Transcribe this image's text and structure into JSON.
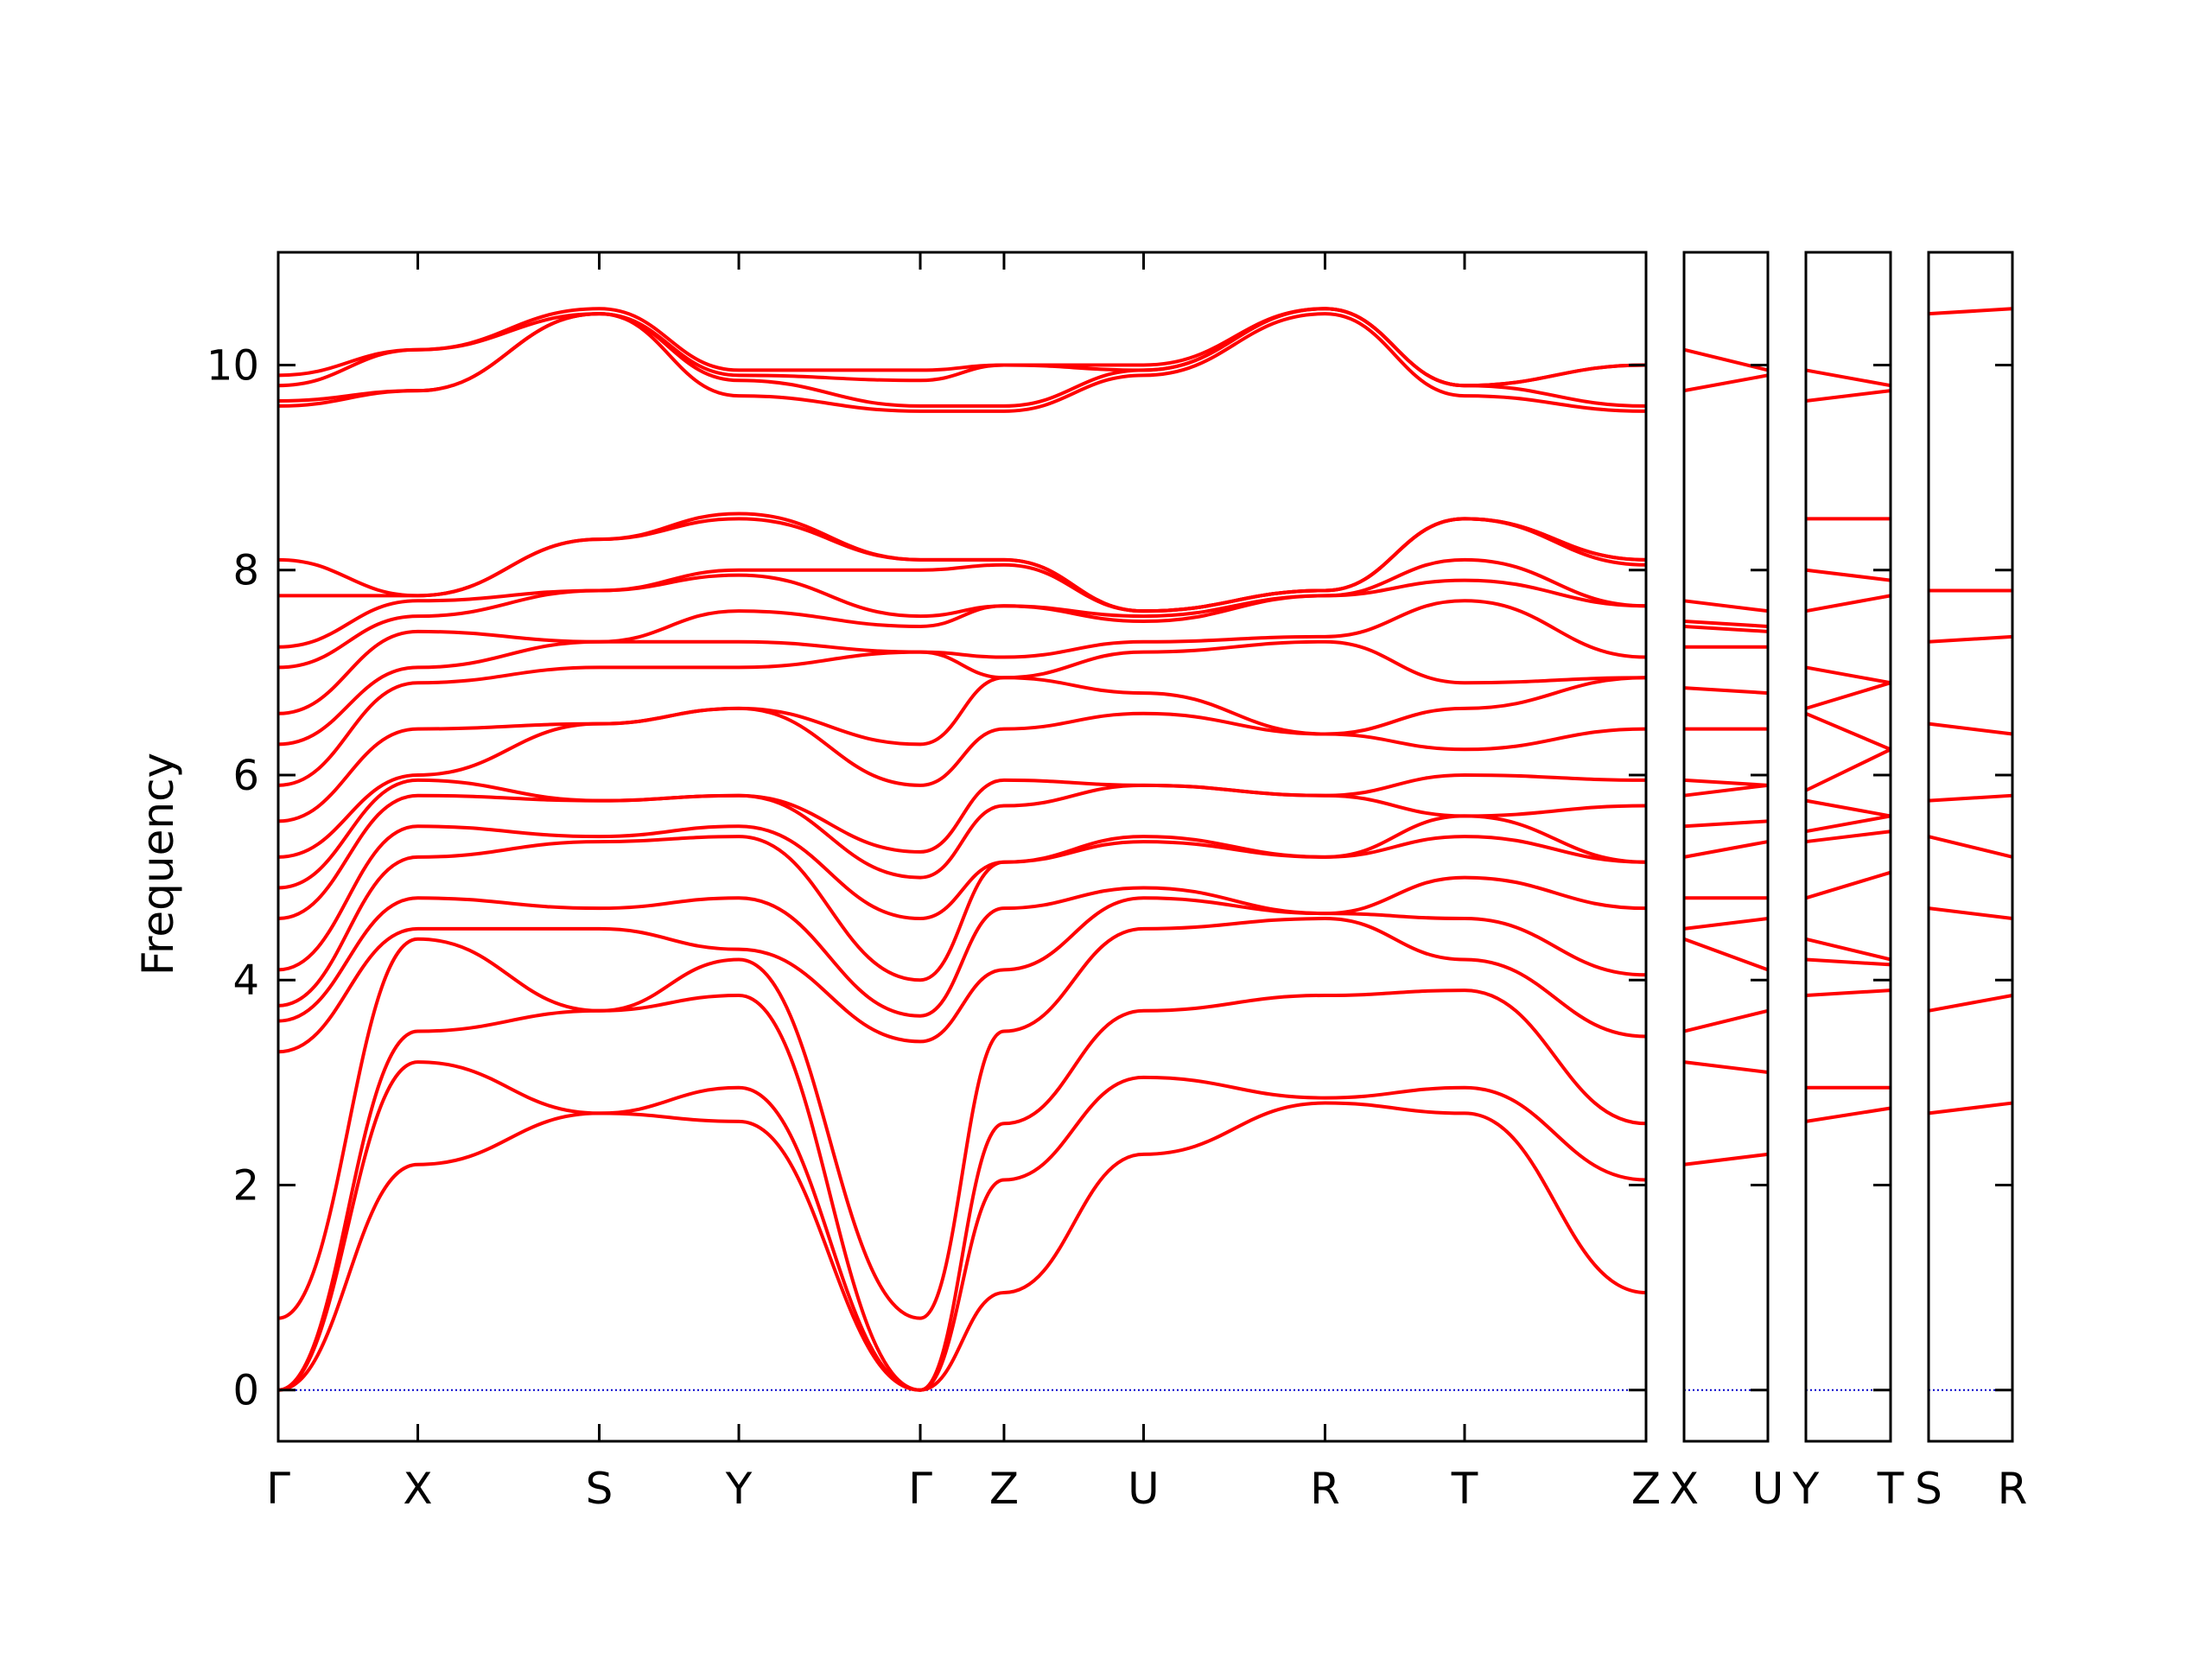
{
  "chart_data": {
    "type": "line",
    "title": "",
    "xlabel": "",
    "ylabel": "Frequency",
    "ylim": [
      -0.5,
      11.1
    ],
    "yticks": [
      0,
      2,
      4,
      6,
      8,
      10
    ],
    "grid": false,
    "legend": "none",
    "colors": {
      "bands": "#ff0000",
      "zero_line": "#0000cc",
      "axes": "#000000"
    },
    "panels": [
      {
        "labels": [
          "Γ",
          "X",
          "S",
          "Y",
          "Γ",
          "Z",
          "U",
          "R",
          "T",
          "Z"
        ],
        "x": [
          0,
          1,
          2.3,
          3.3,
          4.6,
          5.2,
          6.2,
          7.5,
          8.5,
          9.8
        ],
        "bands": [
          {
            "name": "acoustic-1",
            "y": [
              0.0,
              2.2,
              2.7,
              2.62,
              0.0,
              0.95,
              2.3,
              2.8,
              2.7,
              0.95
            ]
          },
          {
            "name": "acoustic-2",
            "y": [
              0.0,
              3.2,
              2.7,
              2.95,
              0.0,
              2.05,
              3.05,
              2.85,
              2.95,
              2.05
            ]
          },
          {
            "name": "acoustic-3",
            "y": [
              0.0,
              3.5,
              3.7,
              3.85,
              0.0,
              2.6,
              3.7,
              3.85,
              3.9,
              2.6
            ]
          },
          {
            "name": "optic-4",
            "y": [
              0.7,
              4.4,
              3.7,
              4.2,
              0.7,
              3.5,
              4.5,
              4.6,
              4.2,
              3.45
            ]
          },
          {
            "name": "optic-5",
            "y": [
              3.3,
              4.5,
              4.5,
              4.3,
              3.4,
              4.1,
              4.8,
              4.65,
              4.6,
              4.05
            ]
          },
          {
            "name": "optic-6",
            "y": [
              3.6,
              4.8,
              4.7,
              4.8,
              3.65,
              4.7,
              4.9,
              4.65,
              5.0,
              4.7
            ]
          },
          {
            "name": "optic-7",
            "y": [
              3.75,
              5.2,
              5.35,
              5.4,
              4.0,
              5.15,
              5.35,
              5.2,
              5.4,
              5.15
            ]
          },
          {
            "name": "optic-8",
            "y": [
              4.1,
              5.5,
              5.4,
              5.5,
              4.6,
              5.15,
              5.4,
              5.2,
              5.6,
              5.15
            ]
          },
          {
            "name": "optic-9",
            "y": [
              4.6,
              5.8,
              5.75,
              5.8,
              5.0,
              5.7,
              5.9,
              5.8,
              5.6,
              5.7
            ]
          },
          {
            "name": "optic-10",
            "y": [
              4.9,
              5.95,
              5.75,
              5.8,
              5.25,
              5.95,
              5.9,
              5.8,
              6.0,
              5.95
            ]
          },
          {
            "name": "optic-11",
            "y": [
              5.2,
              6.0,
              6.5,
              6.65,
              5.9,
              6.45,
              6.6,
              6.4,
              6.25,
              6.45
            ]
          },
          {
            "name": "optic-12",
            "y": [
              5.55,
              6.45,
              6.5,
              6.65,
              6.3,
              6.95,
              6.8,
              6.4,
              6.65,
              6.95
            ]
          },
          {
            "name": "optic-13",
            "y": [
              5.9,
              6.9,
              7.05,
              7.05,
              7.2,
              6.95,
              7.2,
              7.3,
              6.9,
              6.95
            ]
          },
          {
            "name": "optic-14",
            "y": [
              6.3,
              7.05,
              7.3,
              7.3,
              7.2,
              7.15,
              7.3,
              7.35,
              7.7,
              7.15
            ]
          },
          {
            "name": "optic-15",
            "y": [
              6.6,
              7.4,
              7.3,
              7.6,
              7.45,
              7.65,
              7.5,
              7.75,
              7.9,
              7.65
            ]
          },
          {
            "name": "optic-16",
            "y": [
              7.05,
              7.55,
              7.8,
              7.95,
              7.55,
              7.65,
              7.55,
              7.75,
              8.1,
              7.65
            ]
          },
          {
            "name": "optic-17",
            "y": [
              7.25,
              7.7,
              7.8,
              8.0,
              8.0,
              8.05,
              7.6,
              7.8,
              8.5,
              8.05
            ]
          },
          {
            "name": "optic-18",
            "y": [
              7.75,
              7.75,
              8.3,
              8.5,
              8.1,
              8.1,
              7.6,
              7.8,
              8.5,
              8.1
            ]
          },
          {
            "name": "optic-19",
            "y": [
              8.1,
              7.75,
              8.3,
              8.55,
              8.1,
              8.1,
              7.6,
              7.8,
              8.5,
              8.1
            ]
          },
          {
            "name": "optic-20",
            "y": [
              9.6,
              9.75,
              10.5,
              9.7,
              9.55,
              9.55,
              9.9,
              10.5,
              9.7,
              9.55
            ]
          },
          {
            "name": "optic-21",
            "y": [
              9.65,
              9.75,
              10.5,
              9.85,
              9.6,
              9.6,
              9.95,
              10.55,
              9.8,
              9.6
            ]
          },
          {
            "name": "optic-22",
            "y": [
              9.8,
              10.15,
              10.5,
              9.9,
              9.85,
              10.0,
              9.95,
              10.55,
              9.8,
              10.0
            ]
          },
          {
            "name": "optic-23",
            "y": [
              9.9,
              10.15,
              10.55,
              9.95,
              9.95,
              10.0,
              10.0,
              10.55,
              9.8,
              10.0
            ]
          }
        ]
      },
      {
        "labels": [
          "X",
          "U"
        ],
        "x": [
          0,
          1
        ],
        "bands": [
          {
            "name": "b1",
            "y": [
              2.2,
              2.3
            ]
          },
          {
            "name": "b2",
            "y": [
              3.2,
              3.1
            ]
          },
          {
            "name": "b3",
            "y": [
              3.5,
              3.7
            ]
          },
          {
            "name": "b4",
            "y": [
              4.4,
              4.1
            ]
          },
          {
            "name": "b5",
            "y": [
              4.5,
              4.6
            ]
          },
          {
            "name": "b6",
            "y": [
              4.8,
              4.8
            ]
          },
          {
            "name": "b7",
            "y": [
              5.2,
              5.35
            ]
          },
          {
            "name": "b8",
            "y": [
              5.5,
              5.55
            ]
          },
          {
            "name": "b9",
            "y": [
              5.8,
              5.9
            ]
          },
          {
            "name": "b10",
            "y": [
              5.95,
              5.9
            ]
          },
          {
            "name": "b11",
            "y": [
              6.45,
              6.45
            ]
          },
          {
            "name": "b12",
            "y": [
              6.85,
              6.8
            ]
          },
          {
            "name": "b13",
            "y": [
              7.25,
              7.25
            ]
          },
          {
            "name": "b14",
            "y": [
              7.45,
              7.4
            ]
          },
          {
            "name": "b15",
            "y": [
              7.5,
              7.45
            ]
          },
          {
            "name": "b16",
            "y": [
              7.7,
              7.6
            ]
          },
          {
            "name": "b17",
            "y": [
              9.75,
              9.9
            ]
          },
          {
            "name": "b18",
            "y": [
              10.15,
              9.95
            ]
          }
        ]
      },
      {
        "labels": [
          "Y",
          "T"
        ],
        "x": [
          0,
          1
        ],
        "bands": [
          {
            "name": "b1",
            "y": [
              2.62,
              2.75
            ]
          },
          {
            "name": "b2",
            "y": [
              2.95,
              2.95
            ]
          },
          {
            "name": "b3",
            "y": [
              3.85,
              3.9
            ]
          },
          {
            "name": "b4",
            "y": [
              4.2,
              4.15
            ]
          },
          {
            "name": "b5",
            "y": [
              4.4,
              4.2
            ]
          },
          {
            "name": "b6",
            "y": [
              4.8,
              5.05
            ]
          },
          {
            "name": "b7",
            "y": [
              5.35,
              5.45
            ]
          },
          {
            "name": "b8",
            "y": [
              5.45,
              5.6
            ]
          },
          {
            "name": "b9",
            "y": [
              5.75,
              5.6
            ]
          },
          {
            "name": "b10",
            "y": [
              5.85,
              6.25
            ]
          },
          {
            "name": "b11",
            "y": [
              6.6,
              6.25
            ]
          },
          {
            "name": "b12",
            "y": [
              6.65,
              6.9
            ]
          },
          {
            "name": "b13",
            "y": [
              7.05,
              6.9
            ]
          },
          {
            "name": "b14",
            "y": [
              7.6,
              7.75
            ]
          },
          {
            "name": "b15",
            "y": [
              8.0,
              7.9
            ]
          },
          {
            "name": "b16",
            "y": [
              8.5,
              8.5
            ]
          },
          {
            "name": "b17",
            "y": [
              9.65,
              9.75
            ]
          },
          {
            "name": "b18",
            "y": [
              9.95,
              9.8
            ]
          }
        ]
      },
      {
        "labels": [
          "S",
          "R"
        ],
        "x": [
          0,
          1
        ],
        "bands": [
          {
            "name": "b1",
            "y": [
              2.7,
              2.8
            ]
          },
          {
            "name": "b2",
            "y": [
              3.7,
              3.85
            ]
          },
          {
            "name": "b3",
            "y": [
              4.7,
              4.6
            ]
          },
          {
            "name": "b4",
            "y": [
              5.4,
              5.2
            ]
          },
          {
            "name": "b5",
            "y": [
              5.75,
              5.8
            ]
          },
          {
            "name": "b6",
            "y": [
              6.5,
              6.4
            ]
          },
          {
            "name": "b7",
            "y": [
              7.3,
              7.35
            ]
          },
          {
            "name": "b8",
            "y": [
              7.8,
              7.8
            ]
          },
          {
            "name": "b9",
            "y": [
              10.5,
              10.55
            ]
          }
        ]
      }
    ]
  }
}
